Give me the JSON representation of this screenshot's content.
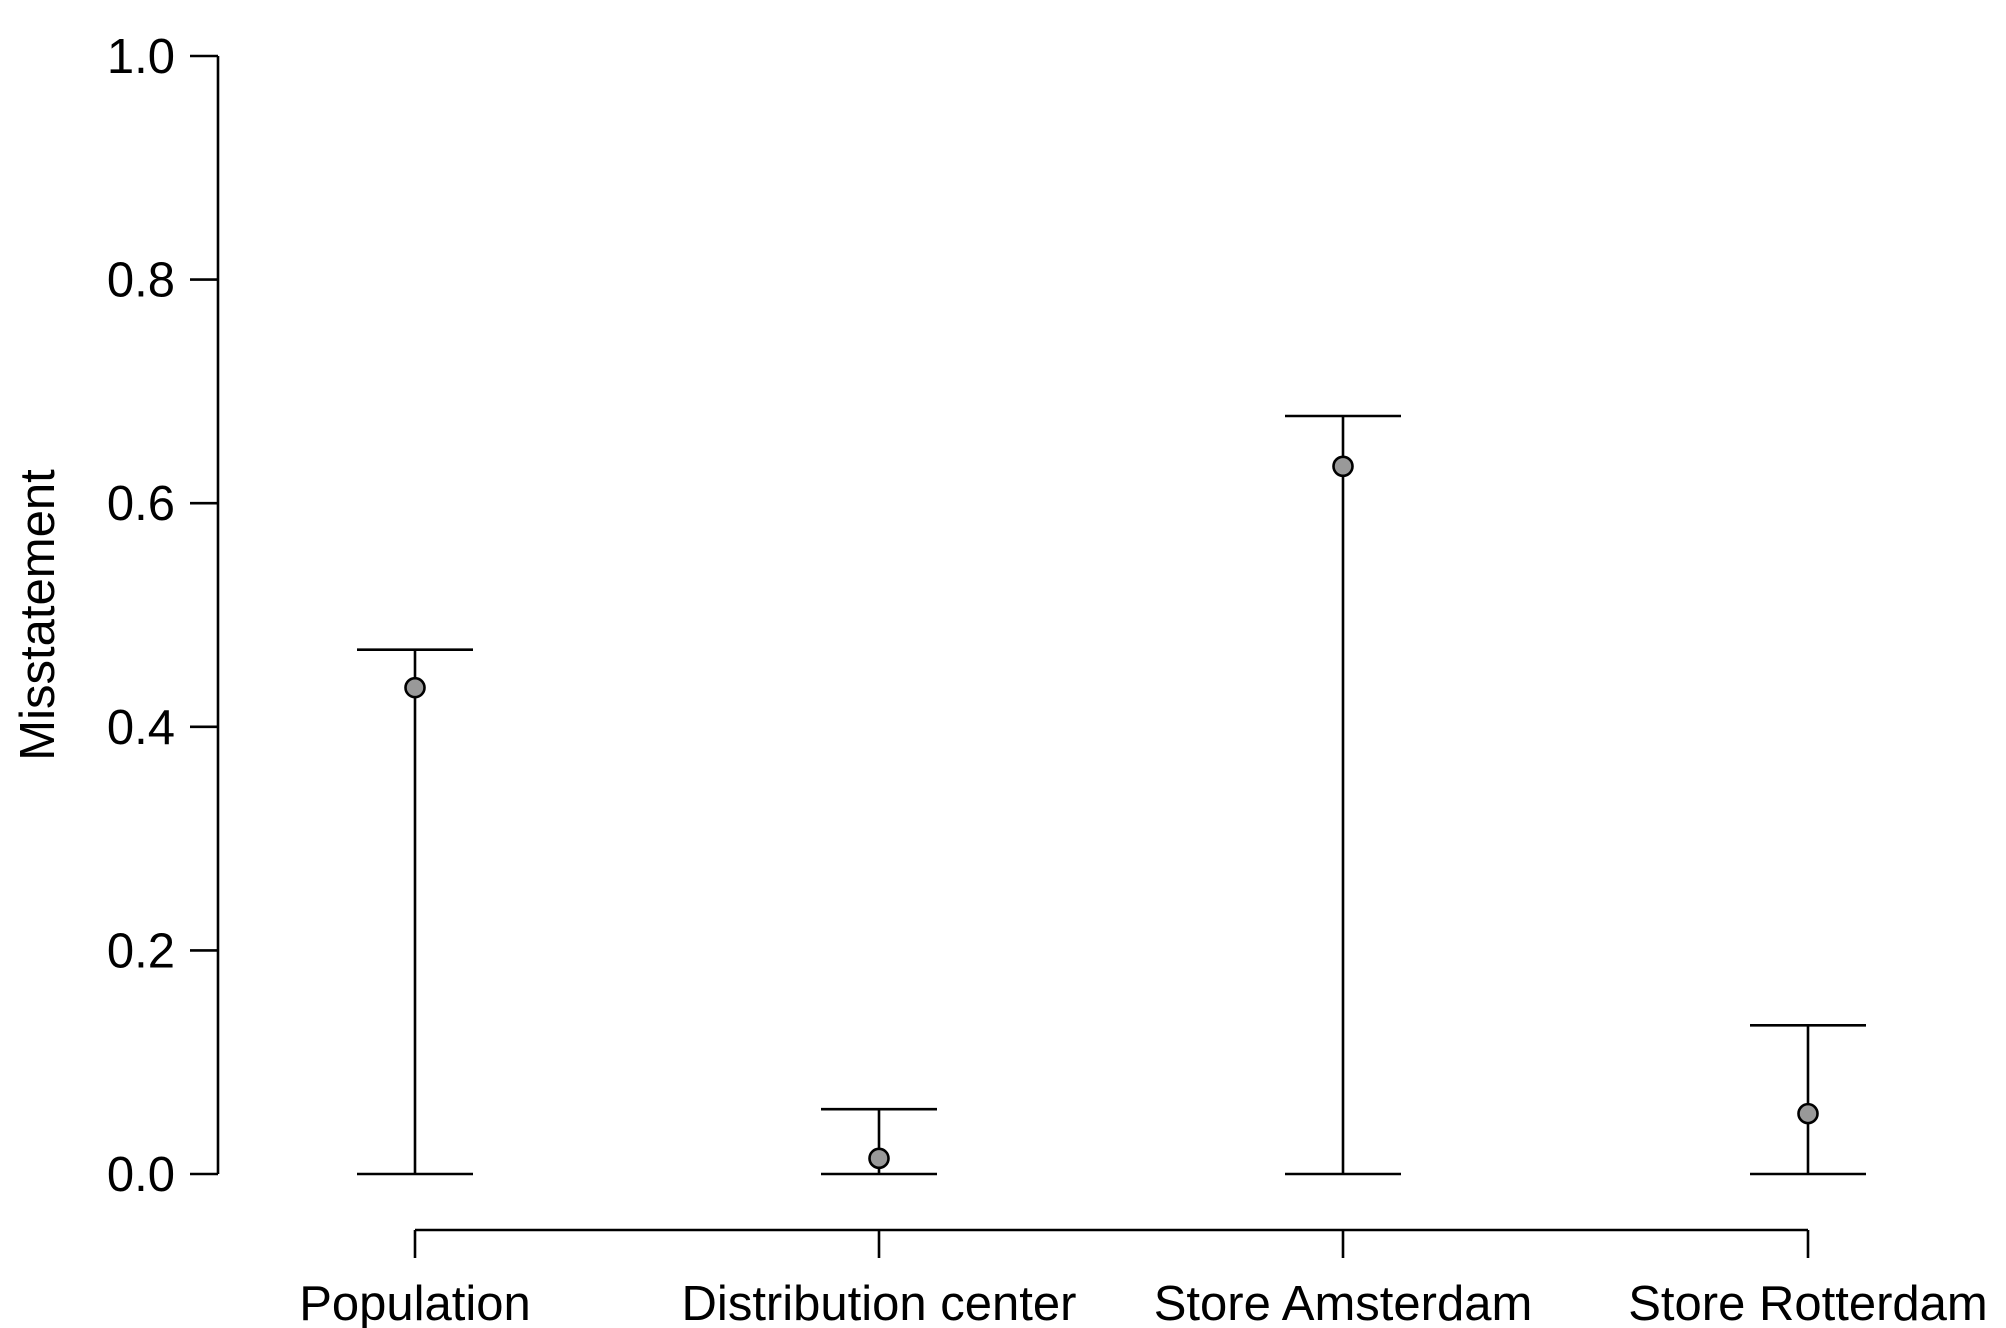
{
  "chart_data": {
    "type": "errorbar",
    "ylabel": "Misstatement",
    "xlabel": "",
    "title": "",
    "ylim": [
      0,
      1
    ],
    "yticks": [
      "0.0",
      "0.2",
      "0.4",
      "0.6",
      "0.8",
      "1.0"
    ],
    "categories": [
      "Population",
      "Distribution center",
      "Store Amsterdam",
      "Store Rotterdam"
    ],
    "series": [
      {
        "estimate": [
          0.435,
          0.014,
          0.633,
          0.054
        ],
        "lower": [
          0.0,
          0.0,
          0.0,
          0.0
        ],
        "upper": [
          0.469,
          0.058,
          0.678,
          0.133
        ]
      }
    ],
    "point_color": "#999999",
    "line_color": "#000000",
    "grid": false,
    "legend": "none"
  }
}
